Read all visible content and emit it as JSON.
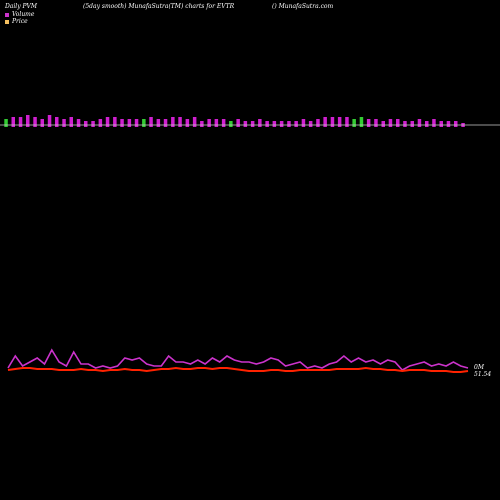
{
  "header": {
    "left": "Daily PVM",
    "center": "(5day smooth) MunafaSutra(TM) charts for EVTR",
    "right": "() MunafaSutra.com"
  },
  "legend": {
    "volume_label": "Volume",
    "volume_color": "#cc33cc",
    "price_label": "Price",
    "price_color": "#f5c060"
  },
  "end_labels": {
    "volume": "0M",
    "price": "51.54"
  },
  "chart_data": [
    {
      "type": "bar",
      "title": "",
      "series": [
        {
          "name": "Volume",
          "values": [
            3,
            4,
            4,
            5,
            4,
            3,
            5,
            4,
            3,
            4,
            3,
            2,
            2,
            3,
            4,
            4,
            3,
            3,
            3,
            3,
            4,
            3,
            3,
            4,
            4,
            3,
            4,
            2,
            3,
            3,
            3,
            2,
            3,
            2,
            2,
            3,
            2,
            2,
            2,
            2,
            2,
            3,
            2,
            3,
            4,
            4,
            4,
            4,
            3,
            4,
            3,
            3,
            2,
            3,
            3,
            2,
            2,
            3,
            2,
            3,
            2,
            2,
            2,
            1
          ],
          "colors": [
            "green",
            "magenta",
            "magenta",
            "magenta",
            "magenta",
            "magenta",
            "magenta",
            "magenta",
            "magenta",
            "magenta",
            "magenta",
            "magenta",
            "magenta",
            "magenta",
            "magenta",
            "magenta",
            "magenta",
            "magenta",
            "magenta",
            "green",
            "magenta",
            "magenta",
            "magenta",
            "magenta",
            "magenta",
            "magenta",
            "magenta",
            "magenta",
            "magenta",
            "magenta",
            "magenta",
            "green",
            "magenta",
            "magenta",
            "magenta",
            "magenta",
            "magenta",
            "magenta",
            "magenta",
            "magenta",
            "magenta",
            "magenta",
            "magenta",
            "magenta",
            "magenta",
            "magenta",
            "magenta",
            "magenta",
            "green",
            "green",
            "magenta",
            "magenta",
            "magenta",
            "magenta",
            "magenta",
            "magenta",
            "magenta",
            "magenta",
            "magenta",
            "magenta",
            "magenta",
            "magenta",
            "magenta",
            "magenta"
          ]
        }
      ],
      "bar_colors": {
        "magenta": "#d020d0",
        "green": "#33cc33"
      },
      "baseline_color": "#cccccc"
    },
    {
      "type": "line",
      "title": "",
      "series": [
        {
          "name": "Volume",
          "color": "#cc33cc",
          "values": [
            12,
            24,
            14,
            18,
            22,
            16,
            30,
            18,
            14,
            28,
            16,
            16,
            12,
            14,
            12,
            14,
            22,
            20,
            22,
            16,
            14,
            14,
            24,
            18,
            18,
            16,
            20,
            16,
            22,
            18,
            24,
            20,
            18,
            18,
            16,
            18,
            22,
            20,
            14,
            16,
            18,
            12,
            14,
            12,
            16,
            18,
            24,
            18,
            22,
            18,
            20,
            16,
            20,
            18,
            10,
            14,
            16,
            18,
            14,
            16,
            14,
            18,
            14,
            12
          ],
          "range": [
            0,
            40
          ]
        },
        {
          "name": "Price",
          "color": "#ff2200",
          "values": [
            10,
            11,
            12,
            12,
            11,
            11,
            11,
            10,
            10,
            10,
            11,
            10,
            10,
            9,
            10,
            10,
            11,
            10,
            10,
            9,
            10,
            11,
            11,
            12,
            11,
            11,
            12,
            12,
            11,
            12,
            12,
            11,
            10,
            9,
            9,
            9,
            10,
            10,
            9,
            9,
            10,
            10,
            10,
            10,
            10,
            11,
            11,
            11,
            11,
            12,
            11,
            11,
            10,
            10,
            9,
            10,
            10,
            10,
            9,
            9,
            9,
            8,
            8,
            9
          ],
          "range": [
            0,
            40
          ]
        }
      ]
    }
  ]
}
